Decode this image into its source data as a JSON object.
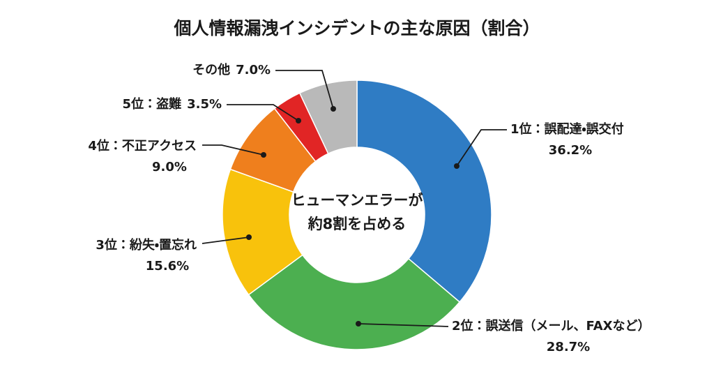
{
  "chart_data": {
    "type": "donut",
    "title": "個人情報漏洩インシデントの主な原因（割合）",
    "annotations": [
      "ヒューマンエラーが",
      "約8割を占める"
    ],
    "categories": [
      "1位：誤配達・誤交付",
      "2位：誤送信（メール、FAXなど）",
      "3位：紛失・置忘れ",
      "4位：不正アクセス",
      "5位：盗難",
      "その他"
    ],
    "values": [
      36.2,
      28.7,
      15.6,
      9.0,
      3.5,
      7.0
    ],
    "value_labels": [
      "36.2%",
      "28.7%",
      "15.6%",
      "9.0%",
      "3.5%",
      "7.0%"
    ],
    "colors": [
      "#2f7cc4",
      "#4caf50",
      "#f8c20c",
      "#ef7f1d",
      "#e12525",
      "#b9b9b9"
    ]
  }
}
